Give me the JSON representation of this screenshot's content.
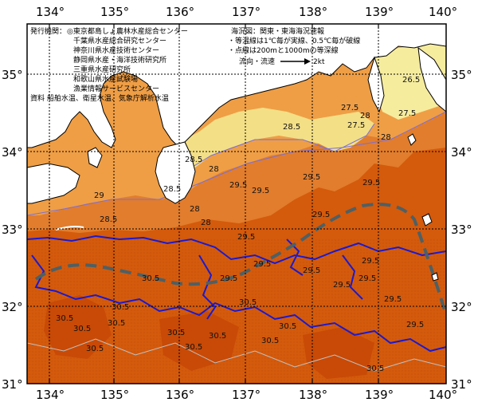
{
  "map": {
    "lon_ticks": [
      "134°",
      "135°",
      "136°",
      "137°",
      "138°",
      "139°",
      "140°"
    ],
    "lat_ticks": [
      "35°",
      "34°",
      "33°",
      "32°",
      "31°"
    ],
    "isotherm_labels": [
      "26.5",
      "27.5",
      "27.5",
      "27.5",
      "28",
      "28",
      "28",
      "28",
      "28.5",
      "28.5",
      "28.5",
      "28.5",
      "28",
      "29",
      "29.5",
      "29.5",
      "29.5",
      "29.5",
      "29.5",
      "29.5",
      "29.5",
      "29.5",
      "29.5",
      "29.5",
      "29.5",
      "29.5",
      "29.5",
      "29.5",
      "30.5",
      "30.5",
      "30.5",
      "30.5",
      "30.5",
      "30.5",
      "30.5",
      "30.5",
      "30.5",
      "30.5",
      "30.5",
      "30.5",
      "30.5"
    ],
    "colors": {
      "land": "#ffffff",
      "coast": "#000000",
      "sea_warm": "#d35400",
      "sea_mid": "#e07b2e",
      "sea_cool": "#f0a347",
      "sea_cold": "#f4e285",
      "isobath": "#1515cc",
      "current": "#4a5d62"
    }
  },
  "notes": {
    "issuer_label": "発行機関：",
    "issuers": [
      "◎東京都島しょ農林水産総合センター",
      "千葉県水産総合研究センター",
      "神奈川県水産技術センター",
      "静岡県水産・海洋技術研究所",
      "三重県水産研究所",
      "和歌山県水産試験場",
      "漁業情報サービスセンター"
    ],
    "sources": "資料 船舶水温、衛星水温、気象庁解析水温",
    "sea_area": "海況図：関東・東海海況速報",
    "legend_isotherm": "・等温線は1℃毎が実線、0.5℃毎が破線",
    "legend_isobath": "・点線は200mと1000mの等深線",
    "current_label": "流向・流速",
    "current_speed": "2kt"
  }
}
